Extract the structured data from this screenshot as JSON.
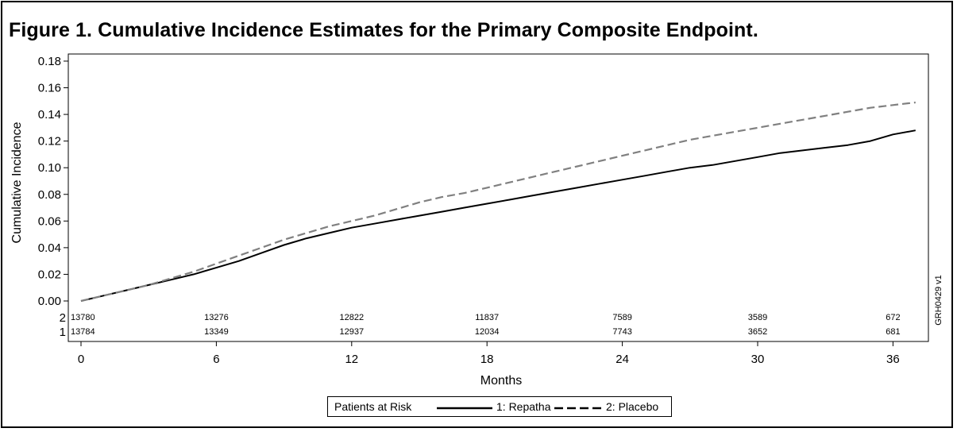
{
  "title": "Figure 1. Cumulative Incidence Estimates for the Primary Composite Endpoint.",
  "side_code": "GRH0429 v1",
  "legend": {
    "header": "Patients at Risk",
    "series1_label": "1: Repatha",
    "series2_label": "2: Placebo"
  },
  "risk_table": {
    "row_labels": [
      "2",
      "1"
    ],
    "row2": [
      "13780",
      "13276",
      "12822",
      "11837",
      "7589",
      "3589",
      "672"
    ],
    "row1": [
      "13784",
      "13349",
      "12937",
      "12034",
      "7743",
      "3652",
      "681"
    ]
  },
  "chart_data": {
    "type": "line",
    "xlabel": "Months",
    "ylabel": "Cumulative Incidence",
    "xlim": [
      0,
      37
    ],
    "ylim": [
      0,
      0.18
    ],
    "x_ticks": [
      "0",
      "6",
      "12",
      "18",
      "24",
      "30",
      "36"
    ],
    "y_ticks": [
      "0.00",
      "0.02",
      "0.04",
      "0.06",
      "0.08",
      "0.10",
      "0.12",
      "0.14",
      "0.16",
      "0.18"
    ],
    "colors": {
      "repatha": "#000000",
      "placebo": "#808080"
    },
    "series": [
      {
        "name": "1: Repatha",
        "style": "solid",
        "x": [
          0,
          1,
          2,
          3,
          4,
          5,
          6,
          7,
          8,
          9,
          10,
          11,
          12,
          13,
          14,
          15,
          16,
          17,
          18,
          19,
          20,
          21,
          22,
          23,
          24,
          25,
          26,
          27,
          28,
          29,
          30,
          31,
          32,
          33,
          34,
          35,
          36,
          37
        ],
        "y": [
          0,
          0.004,
          0.008,
          0.012,
          0.016,
          0.02,
          0.025,
          0.03,
          0.036,
          0.042,
          0.047,
          0.051,
          0.055,
          0.058,
          0.061,
          0.064,
          0.067,
          0.07,
          0.073,
          0.076,
          0.079,
          0.082,
          0.085,
          0.088,
          0.091,
          0.094,
          0.097,
          0.1,
          0.102,
          0.105,
          0.108,
          0.111,
          0.113,
          0.115,
          0.117,
          0.12,
          0.125,
          0.128
        ]
      },
      {
        "name": "2: Placebo",
        "style": "dashed",
        "x": [
          0,
          1,
          2,
          3,
          4,
          5,
          6,
          7,
          8,
          9,
          10,
          11,
          12,
          13,
          14,
          15,
          16,
          17,
          18,
          19,
          20,
          21,
          22,
          23,
          24,
          25,
          26,
          27,
          28,
          29,
          30,
          31,
          32,
          33,
          34,
          35,
          36,
          37
        ],
        "y": [
          0,
          0.004,
          0.008,
          0.012,
          0.017,
          0.022,
          0.028,
          0.034,
          0.04,
          0.046,
          0.051,
          0.056,
          0.06,
          0.064,
          0.069,
          0.074,
          0.078,
          0.081,
          0.085,
          0.089,
          0.093,
          0.097,
          0.101,
          0.105,
          0.109,
          0.113,
          0.117,
          0.121,
          0.124,
          0.127,
          0.13,
          0.133,
          0.136,
          0.139,
          0.142,
          0.145,
          0.147,
          0.149
        ]
      }
    ]
  }
}
